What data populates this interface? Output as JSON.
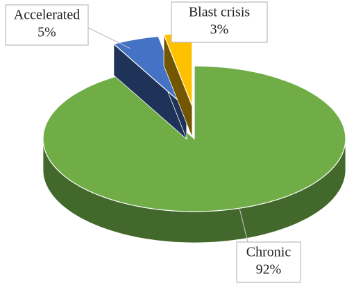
{
  "chart_data": {
    "type": "pie3d",
    "categories": [
      "Chronic",
      "Accelerated",
      "Blast crisis"
    ],
    "values": [
      92,
      5,
      3
    ],
    "value_labels": [
      "92%",
      "5%",
      "3%"
    ],
    "colors": [
      "#70ad47",
      "#4472c4",
      "#ffc000"
    ],
    "exploded": [
      false,
      true,
      true
    ]
  }
}
